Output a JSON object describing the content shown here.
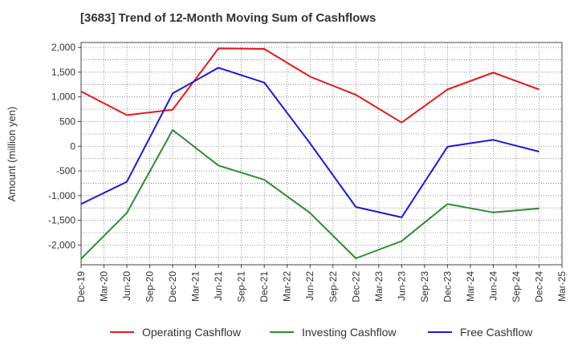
{
  "chart_data": {
    "type": "line",
    "title": "[3683]  Trend of 12-Month Moving Sum of Cashflows",
    "ylabel": "Amount (million yen)",
    "xlabel": "",
    "ylim": [
      -2400,
      2100
    ],
    "yticks": [
      2000,
      1500,
      1000,
      500,
      0,
      -500,
      -1000,
      -1500,
      -2000
    ],
    "ytick_labels": [
      "2,000",
      "1,500",
      "1,000",
      "500",
      "0",
      "-500",
      "-1,000",
      "-1,500",
      "-2,000"
    ],
    "categories": [
      "Dec-19",
      "Mar-20",
      "Jun-20",
      "Sep-20",
      "Dec-20",
      "Mar-21",
      "Jun-21",
      "Sep-21",
      "Dec-21",
      "Mar-22",
      "Jun-22",
      "Sep-22",
      "Dec-22",
      "Mar-23",
      "Jun-23",
      "Sep-23",
      "Dec-23",
      "Mar-24",
      "Jun-24",
      "Sep-24",
      "Dec-24",
      "Mar-25"
    ],
    "grid": true,
    "legend_position": "bottom",
    "series": [
      {
        "name": "Operating Cashflow",
        "color": "#e31a1c",
        "values": [
          1110,
          null,
          630,
          null,
          740,
          null,
          1980,
          null,
          1970,
          null,
          1410,
          null,
          1040,
          null,
          480,
          null,
          1150,
          null,
          1490,
          null,
          1150,
          null
        ]
      },
      {
        "name": "Investing Cashflow",
        "color": "#2e8b2e",
        "values": [
          -2280,
          null,
          -1350,
          null,
          330,
          null,
          -390,
          null,
          -680,
          null,
          -1350,
          null,
          -2270,
          null,
          -1920,
          null,
          -1170,
          null,
          -1340,
          null,
          -1260,
          null
        ]
      },
      {
        "name": "Free Cashflow",
        "color": "#1a1adb",
        "values": [
          -1170,
          null,
          -720,
          null,
          1070,
          null,
          1590,
          null,
          1290,
          null,
          60,
          null,
          -1230,
          null,
          -1440,
          null,
          -10,
          null,
          130,
          null,
          -110,
          null
        ]
      }
    ]
  }
}
